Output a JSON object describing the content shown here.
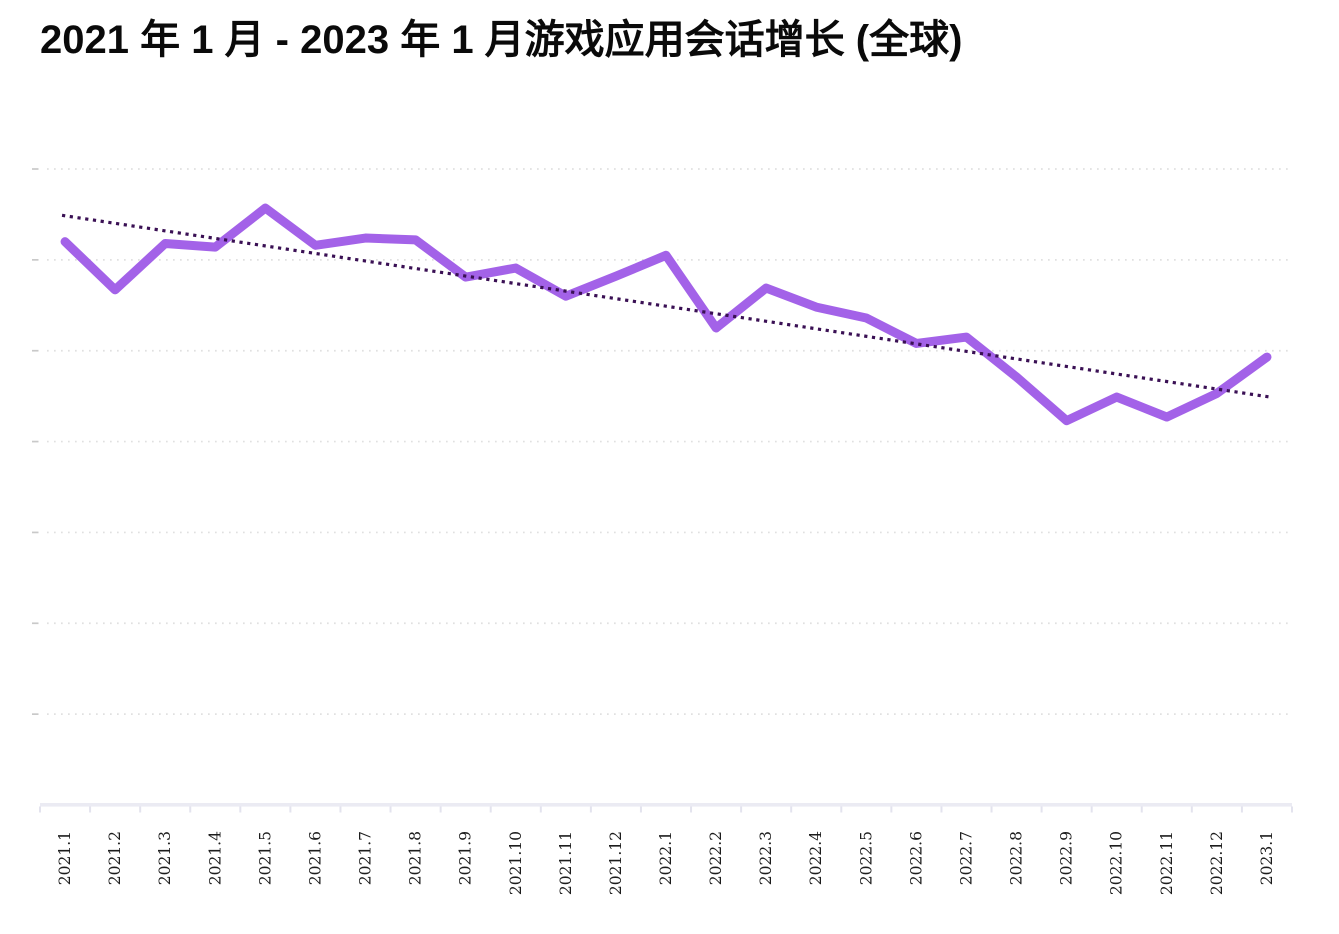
{
  "title": "2021 年 1 月 - 2023 年 1 月游戏应用会话增长 (全球)",
  "chart_data": {
    "type": "line",
    "title": "2021 年 1 月 - 2023 年 1 月游戏应用会话增长 (全球)",
    "categories": [
      "2021.1",
      "2021.2",
      "2021.3",
      "2021.4",
      "2021.5",
      "2021.6",
      "2021.7",
      "2021.8",
      "2021.9",
      "2021.10",
      "2021.11",
      "2021.12",
      "2022.1",
      "2022.2",
      "2022.3",
      "2022.4",
      "2022.5",
      "2022.6",
      "2022.7",
      "2022.8",
      "2022.9",
      "2022.10",
      "2022.11",
      "2022.12",
      "2023.1"
    ],
    "series": [
      {
        "name": "游戏应用会话",
        "values": [
          6.2,
          5.67,
          6.18,
          6.14,
          6.57,
          6.16,
          6.24,
          6.22,
          5.81,
          5.91,
          5.6,
          5.82,
          6.05,
          5.25,
          5.69,
          5.48,
          5.36,
          5.08,
          5.15,
          4.71,
          4.23,
          4.49,
          4.27,
          4.53,
          4.93
        ]
      }
    ],
    "trendline": {
      "start_value": 6.49,
      "end_value": 4.49,
      "style": "dotted"
    },
    "xlabel": "",
    "ylabel": "",
    "ylim": [
      0,
      7
    ],
    "y_gridlines": [
      1,
      2,
      3,
      4,
      5,
      6,
      7
    ],
    "y_axis_labels": "none",
    "units_note": "no y-axis tick labels visible; values expressed in gridline intervals (baseline 0 at x-axis, 1.0 per dotted gridline)",
    "grid": "horizontal dotted lines",
    "legend_position": "none",
    "x_tick_label_rotation_deg": -90
  },
  "colors": {
    "background": "#ffffff",
    "title_text": "#0a0a0a",
    "series_line": "#a362e8",
    "trend_line": "#3a1054",
    "gridline": "#e0e0e0",
    "y_tick": "#c9c9c9",
    "axis_band": "#ebebf3",
    "axis_tick": "#e3e3ee",
    "tick_label": "#1c1c1c"
  }
}
